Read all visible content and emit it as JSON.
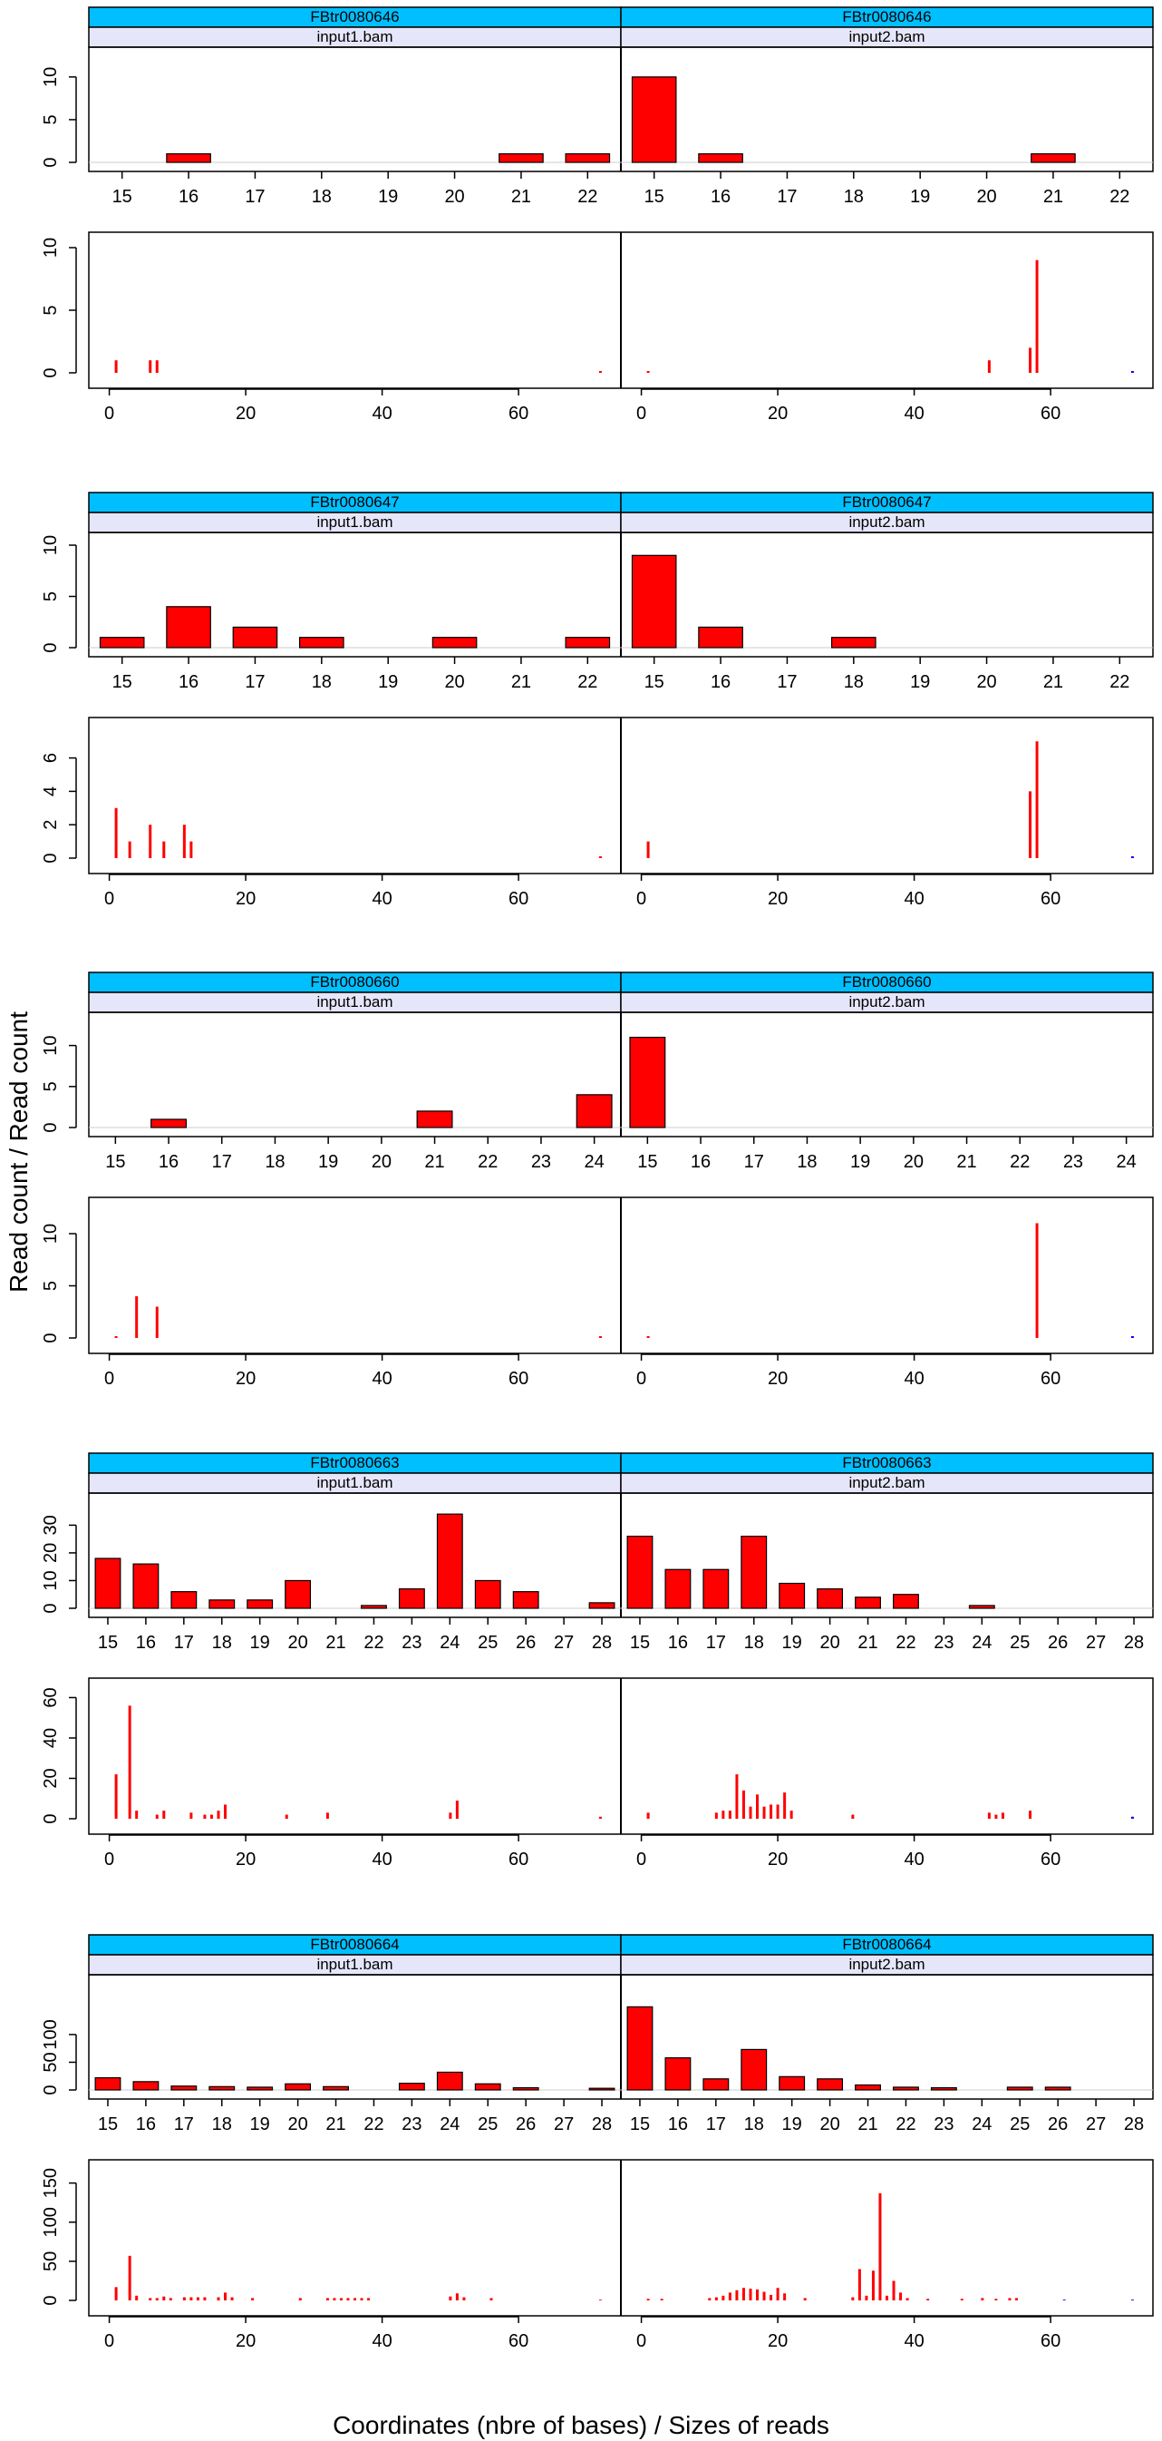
{
  "figure": {
    "xlabel": "Coordinates (nbre of bases) / Sizes of reads",
    "ylabel": "Read count / Read count"
  },
  "colors": {
    "strip_top": "#00BFFF",
    "strip_sub": "#E6E6FA",
    "bar_fill": "#FF0000",
    "bar_stroke": "#000000",
    "line_plus": "#FF0000",
    "line_minus": "#0000FF",
    "zero_line": "#CCCCCC"
  },
  "chart_data": [
    {
      "type": "bar",
      "title": "FBtr0080646",
      "panels": [
        "input1.bam",
        "input2.bam"
      ],
      "categories": [
        15,
        16,
        17,
        18,
        19,
        20,
        21,
        22
      ],
      "ylim": [
        0,
        12
      ],
      "yticks": [
        0,
        5,
        10
      ],
      "series": [
        {
          "values": [
            0,
            1,
            0,
            0,
            0,
            0,
            1,
            1
          ]
        },
        {
          "values": [
            10,
            1,
            0,
            0,
            0,
            0,
            1,
            0
          ]
        }
      ]
    },
    {
      "type": "bar",
      "subtype": "vertical-lines",
      "panels": [
        "input1.bam",
        "input2.bam"
      ],
      "xlim": [
        -3,
        75
      ],
      "xticks": [
        0,
        20,
        40,
        60
      ],
      "ylim": [
        0,
        10
      ],
      "yticks": [
        0,
        5,
        10
      ],
      "series": [
        {
          "points": [
            [
              1,
              1
            ],
            [
              6,
              1
            ],
            [
              7,
              1
            ],
            [
              72,
              0
            ]
          ]
        },
        {
          "points": [
            [
              1,
              0
            ],
            [
              51,
              1
            ],
            [
              57,
              2
            ],
            [
              58,
              9
            ],
            [
              72,
              0
            ]
          ]
        }
      ]
    },
    {
      "type": "bar",
      "title": "FBtr0080647",
      "panels": [
        "input1.bam",
        "input2.bam"
      ],
      "categories": [
        15,
        16,
        17,
        18,
        19,
        20,
        21,
        22
      ],
      "ylim": [
        0,
        10
      ],
      "yticks": [
        0,
        5,
        10
      ],
      "series": [
        {
          "values": [
            1,
            4,
            2,
            1,
            0,
            1,
            0,
            1
          ]
        },
        {
          "values": [
            9,
            2,
            0,
            1,
            0,
            0,
            0,
            0
          ]
        }
      ]
    },
    {
      "type": "bar",
      "subtype": "vertical-lines",
      "panels": [
        "input1.bam",
        "input2.bam"
      ],
      "xlim": [
        -3,
        75
      ],
      "xticks": [
        0,
        20,
        40,
        60
      ],
      "ylim": [
        0,
        7.5
      ],
      "yticks": [
        0,
        2,
        4,
        6
      ],
      "series": [
        {
          "points": [
            [
              1,
              3
            ],
            [
              3,
              1
            ],
            [
              6,
              2
            ],
            [
              8,
              1
            ],
            [
              11,
              2
            ],
            [
              12,
              1
            ],
            [
              72,
              0
            ]
          ]
        },
        {
          "points": [
            [
              1,
              1
            ],
            [
              57,
              4
            ],
            [
              58,
              7
            ],
            [
              72,
              0
            ]
          ]
        }
      ]
    },
    {
      "type": "bar",
      "title": "FBtr0080660",
      "panels": [
        "input1.bam",
        "input2.bam"
      ],
      "categories": [
        15,
        16,
        17,
        18,
        19,
        20,
        21,
        22,
        23,
        24
      ],
      "ylim": [
        0,
        12.5
      ],
      "yticks": [
        0,
        5,
        10
      ],
      "series": [
        {
          "values": [
            0,
            1,
            0,
            0,
            0,
            0,
            2,
            0,
            0,
            4
          ]
        },
        {
          "values": [
            11,
            0,
            0,
            0,
            0,
            0,
            0,
            0,
            0,
            0
          ]
        }
      ]
    },
    {
      "type": "bar",
      "subtype": "vertical-lines",
      "panels": [
        "input1.bam",
        "input2.bam"
      ],
      "xlim": [
        -3,
        75
      ],
      "xticks": [
        0,
        20,
        40,
        60
      ],
      "ylim": [
        0,
        12
      ],
      "yticks": [
        0,
        5,
        10
      ],
      "series": [
        {
          "points": [
            [
              1,
              0
            ],
            [
              4,
              4
            ],
            [
              7,
              3
            ],
            [
              72,
              0
            ]
          ]
        },
        {
          "points": [
            [
              1,
              0
            ],
            [
              58,
              11
            ],
            [
              72,
              0
            ]
          ]
        }
      ]
    },
    {
      "type": "bar",
      "title": "FBtr0080663",
      "panels": [
        "input1.bam",
        "input2.bam"
      ],
      "categories": [
        15,
        16,
        17,
        18,
        19,
        20,
        21,
        22,
        23,
        24,
        25,
        26,
        27,
        28
      ],
      "ylim": [
        0,
        37
      ],
      "yticks": [
        0,
        10,
        20,
        30
      ],
      "series": [
        {
          "values": [
            18,
            16,
            6,
            3,
            3,
            10,
            0,
            1,
            7,
            34,
            10,
            6,
            0,
            2
          ]
        },
        {
          "values": [
            26,
            14,
            14,
            26,
            9,
            7,
            4,
            5,
            0,
            1,
            0,
            0,
            0,
            0
          ]
        }
      ]
    },
    {
      "type": "bar",
      "subtype": "vertical-lines",
      "panels": [
        "input1.bam",
        "input2.bam"
      ],
      "xlim": [
        -3,
        75
      ],
      "xticks": [
        0,
        20,
        40,
        60
      ],
      "ylim": [
        0,
        62
      ],
      "yticks": [
        0,
        20,
        40,
        60
      ],
      "series": [
        {
          "points": [
            [
              1,
              22
            ],
            [
              3,
              56
            ],
            [
              4,
              4
            ],
            [
              7,
              2
            ],
            [
              8,
              4
            ],
            [
              12,
              3
            ],
            [
              14,
              2
            ],
            [
              15,
              2
            ],
            [
              16,
              4
            ],
            [
              17,
              7
            ],
            [
              26,
              2
            ],
            [
              32,
              3
            ],
            [
              50,
              3
            ],
            [
              51,
              9
            ],
            [
              72,
              1
            ]
          ]
        },
        {
          "points": [
            [
              1,
              3
            ],
            [
              11,
              3
            ],
            [
              12,
              4
            ],
            [
              13,
              4
            ],
            [
              14,
              22
            ],
            [
              15,
              14
            ],
            [
              16,
              6
            ],
            [
              17,
              12
            ],
            [
              18,
              6
            ],
            [
              19,
              7
            ],
            [
              20,
              7
            ],
            [
              21,
              13
            ],
            [
              22,
              4
            ],
            [
              31,
              2
            ],
            [
              51,
              3
            ],
            [
              52,
              2
            ],
            [
              53,
              3
            ],
            [
              57,
              4
            ],
            [
              72,
              1
            ]
          ]
        }
      ]
    },
    {
      "type": "bar",
      "title": "FBtr0080664",
      "panels": [
        "input1.bam",
        "input2.bam"
      ],
      "categories": [
        15,
        16,
        17,
        18,
        19,
        20,
        21,
        22,
        23,
        24,
        25,
        26,
        27,
        28
      ],
      "ylim": [
        0,
        185
      ],
      "yticks": [
        0,
        50,
        100
      ],
      "series": [
        {
          "values": [
            22,
            15,
            7,
            6,
            5,
            11,
            6,
            0,
            12,
            32,
            11,
            4,
            0,
            3
          ]
        },
        {
          "values": [
            150,
            58,
            20,
            73,
            24,
            20,
            9,
            5,
            4,
            0,
            5,
            5,
            0,
            0
          ]
        }
      ]
    },
    {
      "type": "bar",
      "subtype": "vertical-lines",
      "panels": [
        "input1.bam",
        "input2.bam"
      ],
      "xlim": [
        -3,
        75
      ],
      "xticks": [
        0,
        20,
        40,
        60
      ],
      "ylim": [
        0,
        160
      ],
      "yticks": [
        0,
        50,
        100,
        150
      ],
      "series": [
        {
          "points": [
            [
              1,
              17
            ],
            [
              3,
              57
            ],
            [
              4,
              6
            ],
            [
              6,
              3
            ],
            [
              7,
              3
            ],
            [
              8,
              5
            ],
            [
              9,
              3
            ],
            [
              11,
              4
            ],
            [
              12,
              4
            ],
            [
              13,
              4
            ],
            [
              14,
              4
            ],
            [
              16,
              4
            ],
            [
              17,
              10
            ],
            [
              18,
              4
            ],
            [
              21,
              3
            ],
            [
              28,
              3
            ],
            [
              32,
              3
            ],
            [
              33,
              3
            ],
            [
              34,
              3
            ],
            [
              35,
              3
            ],
            [
              36,
              3
            ],
            [
              37,
              3
            ],
            [
              38,
              3
            ],
            [
              50,
              5
            ],
            [
              51,
              9
            ],
            [
              52,
              4
            ],
            [
              56,
              3
            ],
            [
              72,
              1
            ]
          ]
        },
        {
          "points": [
            [
              1,
              2
            ],
            [
              3,
              2
            ],
            [
              10,
              3
            ],
            [
              11,
              4
            ],
            [
              12,
              6
            ],
            [
              13,
              10
            ],
            [
              14,
              13
            ],
            [
              15,
              16
            ],
            [
              16,
              15
            ],
            [
              17,
              14
            ],
            [
              18,
              11
            ],
            [
              19,
              7
            ],
            [
              20,
              16
            ],
            [
              21,
              9
            ],
            [
              24,
              3
            ],
            [
              31,
              4
            ],
            [
              32,
              40
            ],
            [
              33,
              6
            ],
            [
              34,
              38
            ],
            [
              35,
              137
            ],
            [
              36,
              6
            ],
            [
              37,
              25
            ],
            [
              38,
              10
            ],
            [
              39,
              3
            ],
            [
              42,
              2
            ],
            [
              47,
              2
            ],
            [
              50,
              3
            ],
            [
              52,
              2
            ],
            [
              54,
              3
            ],
            [
              55,
              3
            ],
            [
              62,
              1
            ],
            [
              72,
              1
            ]
          ]
        }
      ]
    }
  ]
}
